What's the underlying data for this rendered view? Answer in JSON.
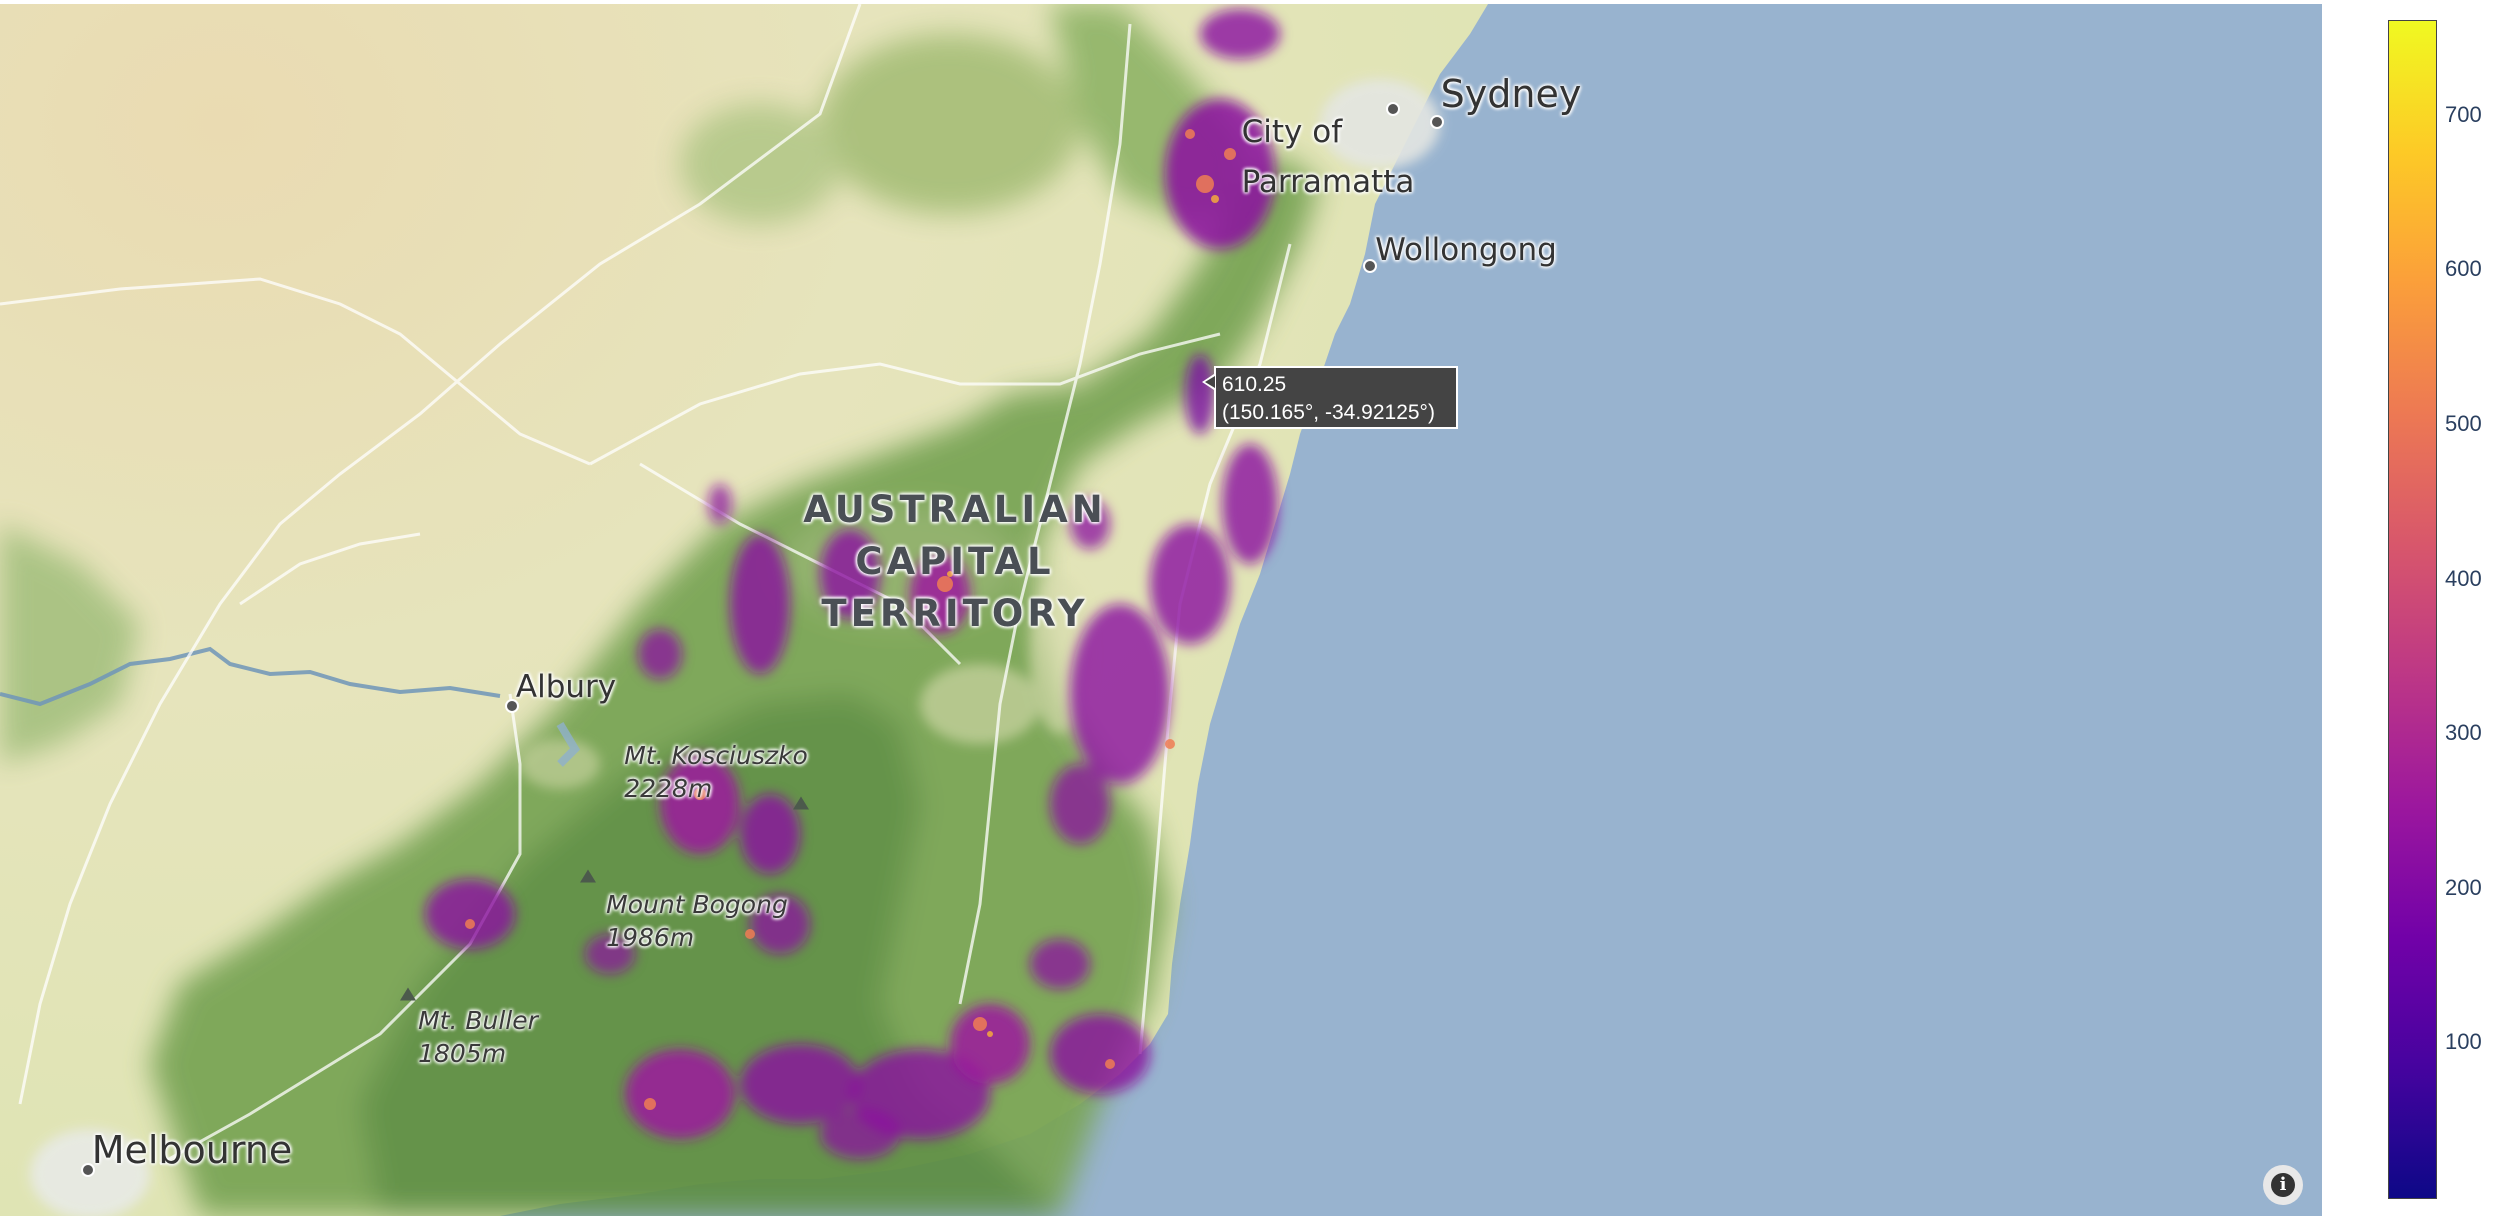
{
  "map": {
    "style": "stamen-terrain",
    "colors": {
      "ocean": "#98b3cf",
      "land_dry": "#e8e3b8",
      "land_forest": "#7aa556",
      "border_line": "#6f95b9",
      "colorscale": [
        "#0d0887",
        "#46039f",
        "#7201a8",
        "#9c179e",
        "#bd3786",
        "#d8576b",
        "#ed7953",
        "#fb9f3a",
        "#fdca26",
        "#f0f921"
      ]
    },
    "place_labels": [
      {
        "id": "sydney",
        "name": "Sydney"
      },
      {
        "id": "parramatta",
        "name": "City of\nParramatta"
      },
      {
        "id": "wollongong",
        "name": "Wollongong"
      },
      {
        "id": "albury",
        "name": "Albury"
      },
      {
        "id": "melbourne",
        "name": "Melbourne"
      }
    ],
    "region_label": "AUSTRALIAN\nCAPITAL\nTERRITORY",
    "peak_labels": [
      {
        "id": "kosciuszko",
        "name": "Mt. Kosciuszko\n2228m"
      },
      {
        "id": "bogong",
        "name": "Mount Bogong\n1986m"
      },
      {
        "id": "buller",
        "name": "Mt. Buller\n1805m"
      }
    ]
  },
  "hover": {
    "value": "610.25",
    "coords": "(150.165°, -34.92125°)"
  },
  "colorbar": {
    "ticks": [
      "700",
      "600",
      "500",
      "400",
      "300",
      "200",
      "100"
    ],
    "tick_values": [
      700,
      600,
      500,
      400,
      300,
      200,
      100
    ],
    "range": [
      0,
      760
    ]
  },
  "info_button": {
    "icon": "info-icon",
    "glyph": "i"
  }
}
